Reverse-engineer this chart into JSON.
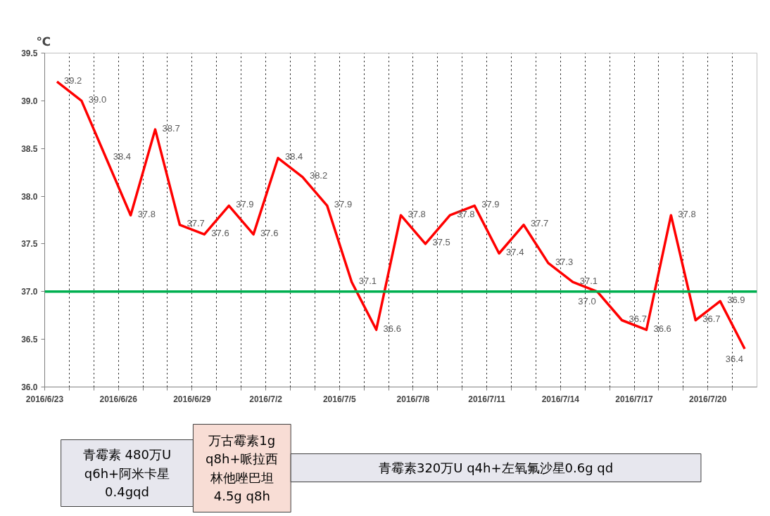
{
  "chart_data": {
    "type": "line",
    "ylabel": "℃",
    "x": [
      "2016-06-23T12:00",
      "2016-06-24T12:00",
      "2016-06-25T12:00",
      "2016-06-26T12:00",
      "2016-06-27T12:00",
      "2016-06-28T12:00",
      "2016-06-29T12:00",
      "2016-06-30T12:00",
      "2016-07-01T12:00",
      "2016-07-02T12:00",
      "2016-07-03T12:00",
      "2016-07-04T12:00",
      "2016-07-05T12:00",
      "2016-07-06T12:00",
      "2016-07-07T12:00",
      "2016-07-08T12:00",
      "2016-07-09T12:00",
      "2016-07-10T12:00",
      "2016-07-11T12:00",
      "2016-07-12T12:00",
      "2016-07-13T12:00",
      "2016-07-14T12:00",
      "2016-07-15T12:00",
      "2016-07-16T12:00",
      "2016-07-17T12:00",
      "2016-07-18T12:00",
      "2016-07-19T12:00",
      "2016-07-20T12:00",
      "2016-07-21T12:00"
    ],
    "series": [
      {
        "color": "#ff0000",
        "values": [
          39.2,
          39.0,
          38.4,
          37.8,
          38.7,
          37.7,
          37.6,
          37.9,
          37.6,
          38.4,
          38.2,
          37.9,
          37.1,
          36.6,
          37.8,
          37.5,
          37.8,
          37.9,
          37.4,
          37.7,
          37.3,
          37.1,
          37.0,
          36.7,
          36.6,
          37.8,
          36.7,
          36.9,
          36.4
        ],
        "value_labels": [
          "39.2",
          "39.0",
          "38.4",
          "37.8",
          "38.7",
          "37.7",
          "37.6",
          "37.9",
          "37.6",
          "38.4",
          "38.2",
          "37.9",
          "37.1",
          "36.6",
          "37.8",
          "37.5",
          "37.8",
          "37.9",
          "37.4",
          "37.7",
          "37.3",
          "37.1",
          "37.0",
          "36.7",
          "36.6",
          "37.8",
          "36.7",
          "36.9",
          "36.4"
        ]
      }
    ],
    "xlim": [
      "2016-06-23",
      "2016-07-22"
    ],
    "xticks": [
      {
        "value": "2016-06-23",
        "label": "2016/6/23"
      },
      {
        "value": "2016-06-24",
        "label": null
      },
      {
        "value": "2016-06-25",
        "label": null
      },
      {
        "value": "2016-06-26",
        "label": "2016/6/26"
      },
      {
        "value": "2016-06-27",
        "label": null
      },
      {
        "value": "2016-06-28",
        "label": null
      },
      {
        "value": "2016-06-29",
        "label": "2016/6/29"
      },
      {
        "value": "2016-06-30",
        "label": null
      },
      {
        "value": "2016-07-01",
        "label": null
      },
      {
        "value": "2016-07-02",
        "label": "2016/7/2"
      },
      {
        "value": "2016-07-03",
        "label": null
      },
      {
        "value": "2016-07-04",
        "label": null
      },
      {
        "value": "2016-07-05",
        "label": "2016/7/5"
      },
      {
        "value": "2016-07-06",
        "label": null
      },
      {
        "value": "2016-07-07",
        "label": null
      },
      {
        "value": "2016-07-08",
        "label": "2016/7/8"
      },
      {
        "value": "2016-07-09",
        "label": null
      },
      {
        "value": "2016-07-10",
        "label": null
      },
      {
        "value": "2016-07-11",
        "label": "2016/7/11"
      },
      {
        "value": "2016-07-12",
        "label": null
      },
      {
        "value": "2016-07-13",
        "label": null
      },
      {
        "value": "2016-07-14",
        "label": "2016/7/14"
      },
      {
        "value": "2016-07-15",
        "label": null
      },
      {
        "value": "2016-07-16",
        "label": null
      },
      {
        "value": "2016-07-17",
        "label": "2016/7/17"
      },
      {
        "value": "2016-07-18",
        "label": null
      },
      {
        "value": "2016-07-19",
        "label": null
      },
      {
        "value": "2016-07-20",
        "label": "2016/7/20"
      },
      {
        "value": "2016-07-21",
        "label": null
      }
    ],
    "ylim": [
      36.0,
      39.5
    ],
    "yticks": [
      {
        "value": 36.0,
        "label": "36.0"
      },
      {
        "value": 36.5,
        "label": "36.5"
      },
      {
        "value": 37.0,
        "label": "37.0"
      },
      {
        "value": 37.5,
        "label": "37.5"
      },
      {
        "value": 38.0,
        "label": "38.0"
      },
      {
        "value": 38.5,
        "label": "38.5"
      },
      {
        "value": 39.0,
        "label": "39.0"
      },
      {
        "value": 39.5,
        "label": "39.5"
      }
    ],
    "grid": "x",
    "line_style": "solid",
    "ref_lines": [
      {
        "axis": "y",
        "value": 37.0,
        "color": "#00b050"
      }
    ],
    "annotations": [
      "青霉素 480万U\nq6h+阿米卡星\n0.4gqd",
      "万古霉素1g\nq8h+哌拉西林他唑巴坦\n4.5g q8h",
      "青霉素320万U q4h+左氧氟沙星0.6g qd"
    ]
  }
}
